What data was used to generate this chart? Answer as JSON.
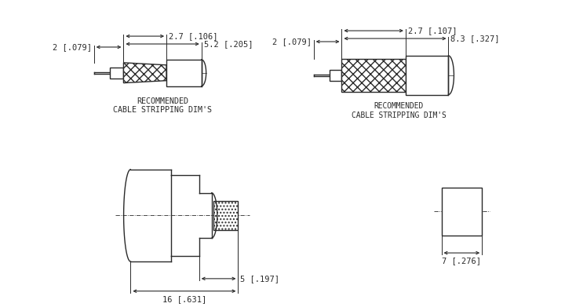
{
  "bg_color": "#ffffff",
  "line_color": "#2a2a2a",
  "font_size_dim": 7.5,
  "font_size_label": 7.2,
  "dims": {
    "left_dim_2": "2 [.079]",
    "left_dim_27": "2.7 [.106]",
    "left_dim_52": "5.2 [.205]",
    "right_dim_2": "2 [.079]",
    "right_dim_27": "2.7 [.107]",
    "right_dim_83": "8.3 [.327]",
    "conn_dim_5": "5 [.197]",
    "conn_dim_16": "16 [.631]",
    "end_dim_7": "7 [.276]",
    "label_left": "RECOMMENDED\nCABLE STRIPPING DIM'S",
    "label_right": "RECOMMENDED\nCABLE STRIPPING DIM'S"
  }
}
